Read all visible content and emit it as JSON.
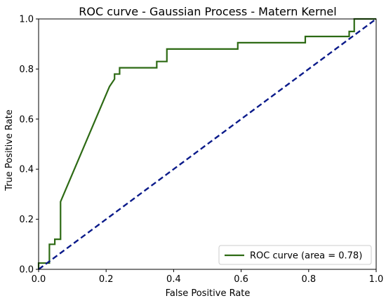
{
  "chart_data": {
    "type": "line",
    "title": "ROC curve - Gaussian Process - Matern Kernel",
    "xlabel": "False Positive Rate",
    "ylabel": "True Positive Rate",
    "xlim": [
      0.0,
      1.0
    ],
    "ylim": [
      0.0,
      1.0
    ],
    "xticks": [
      0.0,
      0.2,
      0.4,
      0.6,
      0.8,
      1.0
    ],
    "xtick_labels": [
      "0.0",
      "0.2",
      "0.4",
      "0.6",
      "0.8",
      "1.0"
    ],
    "yticks": [
      0.0,
      0.2,
      0.4,
      0.6,
      0.8,
      1.0
    ],
    "ytick_labels": [
      "0.0",
      "0.2",
      "0.4",
      "0.6",
      "0.8",
      "1.0"
    ],
    "grid": false,
    "legend_position": "lower-right",
    "series": [
      {
        "name": "ROC curve (area = 0.78)",
        "color": "#2d6a14",
        "style": "solid",
        "x": [
          0.0,
          0.0,
          0.032,
          0.032,
          0.048,
          0.048,
          0.065,
          0.065,
          0.21,
          0.225,
          0.225,
          0.24,
          0.24,
          0.35,
          0.35,
          0.38,
          0.38,
          0.59,
          0.59,
          0.79,
          0.79,
          0.92,
          0.92,
          0.935,
          0.935,
          1.0
        ],
        "y": [
          0.0,
          0.025,
          0.025,
          0.1,
          0.1,
          0.12,
          0.12,
          0.27,
          0.73,
          0.76,
          0.78,
          0.78,
          0.805,
          0.805,
          0.83,
          0.83,
          0.88,
          0.88,
          0.905,
          0.905,
          0.93,
          0.93,
          0.95,
          0.95,
          1.0,
          1.0
        ]
      },
      {
        "name": "",
        "color": "#0a1a8a",
        "style": "dashed",
        "x": [
          0.0,
          1.0
        ],
        "y": [
          0.0,
          1.0
        ]
      }
    ]
  }
}
